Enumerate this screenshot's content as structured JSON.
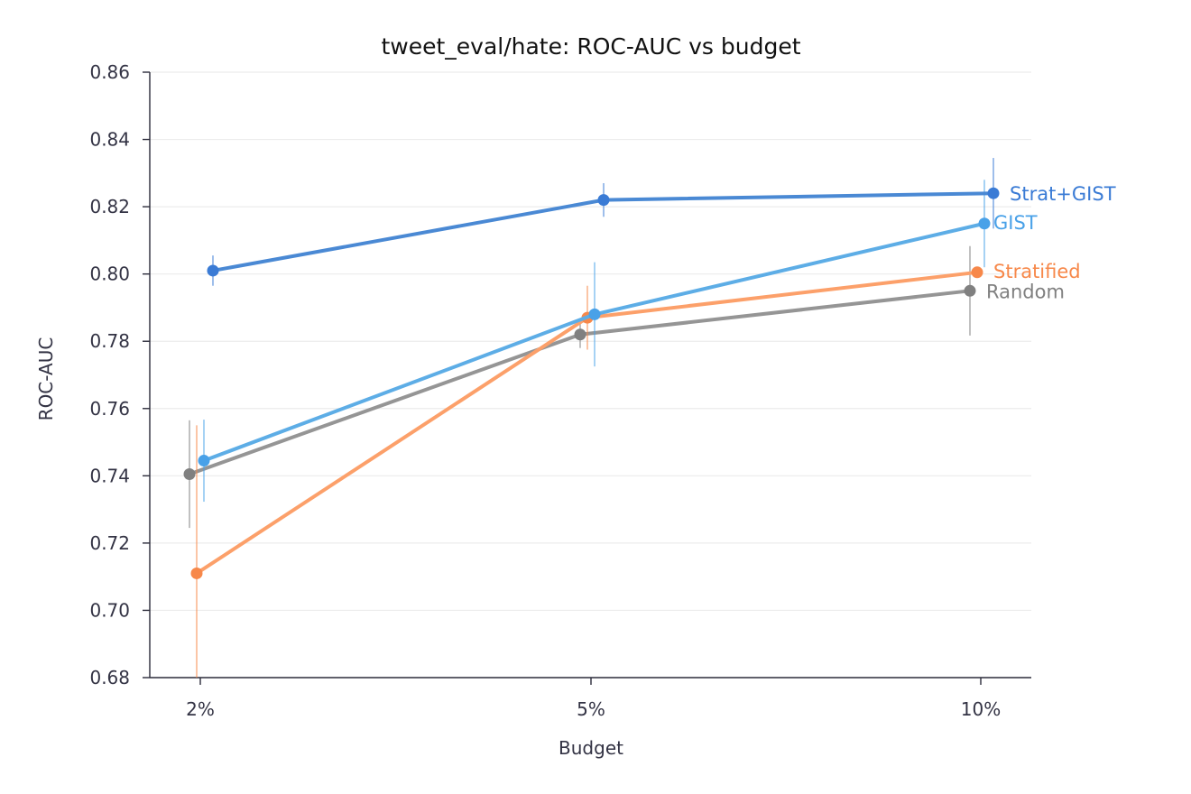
{
  "chart_data": {
    "type": "line",
    "title": "tweet_eval/hate: ROC-AUC vs budget",
    "xlabel": "Budget",
    "ylabel": "ROC-AUC",
    "categories": [
      "2%",
      "5%",
      "10%"
    ],
    "ylim": [
      0.68,
      0.86
    ],
    "yticks": [
      "0.68",
      "0.70",
      "0.72",
      "0.74",
      "0.76",
      "0.78",
      "0.80",
      "0.82",
      "0.84",
      "0.86"
    ],
    "grid": "horizontal",
    "legend": "labels at line ends (right)",
    "series": [
      {
        "name": "Strat+GIST",
        "color": "#3a7bd5",
        "line_color": "#4a89d4",
        "values": [
          0.801,
          0.822,
          0.824
        ],
        "errors": [
          0.0045,
          0.005,
          0.0105
        ]
      },
      {
        "name": "GIST",
        "color": "#49a1e8",
        "line_color": "#5dade6",
        "values": [
          0.7445,
          0.788,
          0.815
        ],
        "errors": [
          0.0122,
          0.0155,
          0.013
        ]
      },
      {
        "name": "Stratified",
        "color": "#f7884a",
        "line_color": "#fca06a",
        "values": [
          0.711,
          0.787,
          0.8005
        ],
        "errors": [
          0.044,
          0.0095,
          0.0005
        ]
      },
      {
        "name": "Random",
        "color": "#808080",
        "line_color": "#959595",
        "values": [
          0.7405,
          0.782,
          0.795
        ],
        "errors": [
          0.016,
          0.004,
          0.0133
        ]
      }
    ]
  }
}
